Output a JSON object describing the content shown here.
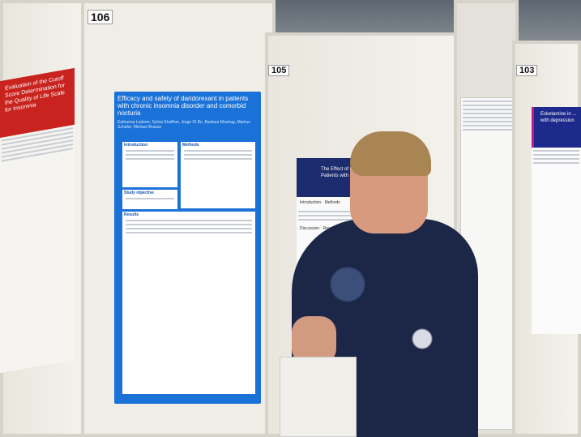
{
  "boards": [
    {
      "number": "106"
    },
    {
      "number": "105"
    },
    {
      "number": "103"
    }
  ],
  "poster_left": {
    "title": "Evaluation of the Cutoff Score Determination for the Quality of Life Scale for Insomnia"
  },
  "poster_main": {
    "title": "Efficacy and safety of daridorexant in patients with chronic insomnia disorder and comorbid nocturia",
    "authors": "Katharina Lederer, Sylvia Shaffner, Jorge Di Bo, Barbara Moorlag, Markus Schafer, Michael Brause",
    "sections": [
      "Introduction",
      "Methods",
      "Study objective",
      "Results"
    ],
    "color": "#1a72d8"
  },
  "poster_middle": {
    "title": "The Effect of CBT-I on Patients with Insomnia",
    "sections": [
      "Introduction",
      "Methods",
      "Discussion",
      "Results"
    ],
    "color": "#1c2c6e"
  },
  "poster_right": {
    "title": "Esketamine in ... with depression",
    "color": "#1d2a8c"
  }
}
